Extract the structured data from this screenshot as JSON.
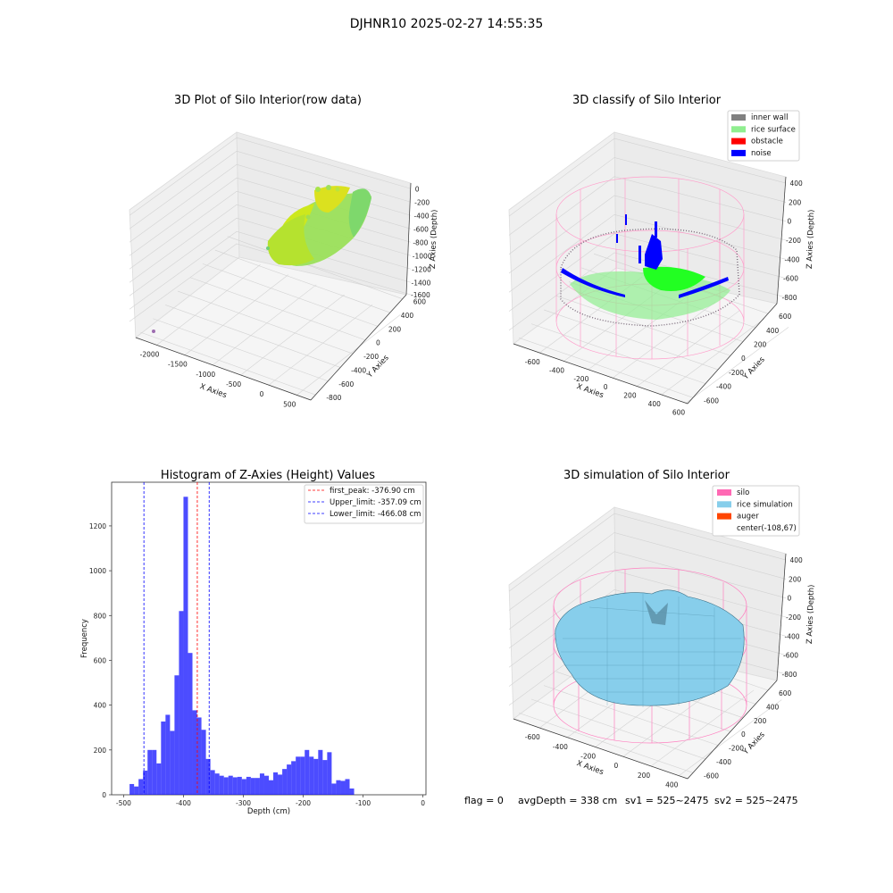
{
  "figure": {
    "suptitle": "DJHNR10 2025-02-27 14:55:35",
    "footer": {
      "flag": "flag = 0",
      "avgdepth": "avgDepth = 338 cm",
      "sv1": "sv1 = 525~2475",
      "sv2": "sv2 = 525~2475"
    }
  },
  "panels": {
    "p1": {
      "title": "3D Plot of Silo Interior(row data)",
      "xlabel": "X Axies",
      "ylabel": "Y Axies",
      "zlabel": "Z Axies (Depth)",
      "xticks": [
        "-2000",
        "-1500",
        "-1000",
        "-500",
        "0",
        "500"
      ],
      "yticks": [
        "-800",
        "-600",
        "-400",
        "-200",
        "0",
        "200",
        "400",
        "600"
      ],
      "zticks": [
        "0",
        "-200",
        "-400",
        "-600",
        "-800",
        "-1000",
        "-1200",
        "-1400",
        "-1600"
      ]
    },
    "p2": {
      "title": "3D classify of Silo Interior",
      "xlabel": "X Axies",
      "ylabel": "Y Axies",
      "zlabel": "Z Axies (Depth)",
      "xticks": [
        "-600",
        "-400",
        "-200",
        "0",
        "200",
        "400",
        "600"
      ],
      "yticks": [
        "-600",
        "-400",
        "-200",
        "0",
        "200",
        "400",
        "600"
      ],
      "zticks": [
        "400",
        "200",
        "0",
        "-200",
        "-400",
        "-600",
        "-800"
      ],
      "legend": [
        {
          "label": "inner wall",
          "color": "#808080"
        },
        {
          "label": "rice surface",
          "color": "#90ee90"
        },
        {
          "label": "obstacle",
          "color": "#ff0000"
        },
        {
          "label": "noise",
          "color": "#0000ff"
        }
      ]
    },
    "p4": {
      "title": "3D simulation of Silo Interior",
      "xlabel": "X Axies",
      "ylabel": "Y Axies",
      "zlabel": "Z Axies (Depth)",
      "xticks": [
        "-600",
        "-400",
        "-200",
        "0",
        "200",
        "400"
      ],
      "yticks": [
        "-600",
        "-400",
        "-200",
        "0",
        "200",
        "400",
        "600"
      ],
      "zticks": [
        "400",
        "200",
        "0",
        "-200",
        "-400",
        "-600",
        "-800"
      ],
      "legend": [
        {
          "label": "silo",
          "color": "#ff69b4"
        },
        {
          "label": "rice simulation",
          "color": "#87ceeb"
        },
        {
          "label": "auger",
          "color": "#ff4500"
        },
        {
          "label": "center(-108,67)",
          "color": ""
        }
      ]
    }
  },
  "chart_data": {
    "type": "bar",
    "title": "Histogram of Z-Axies (Height) Values",
    "xlabel": "Depth (cm)",
    "ylabel": "Frequency",
    "xlim": [
      -520,
      5
    ],
    "ylim": [
      0,
      1395
    ],
    "xticks": [
      -500,
      -400,
      -300,
      -200,
      -100,
      0
    ],
    "yticks": [
      0,
      200,
      400,
      600,
      800,
      1000,
      1200
    ],
    "bar_color": "#0000ff",
    "bin_width": 7.5,
    "bins_start": [
      -490,
      -482.5,
      -475,
      -467.5,
      -460,
      -452.5,
      -445,
      -437.5,
      -430,
      -422.5,
      -415,
      -407.5,
      -400,
      -392.5,
      -385,
      -377.5,
      -370,
      -362.5,
      -355,
      -347.5,
      -340,
      -332.5,
      -325,
      -317.5,
      -310,
      -302.5,
      -295,
      -287.5,
      -280,
      -272.5,
      -265,
      -257.5,
      -250,
      -242.5,
      -235,
      -227.5,
      -220,
      -212.5,
      -205,
      -197.5,
      -190,
      -182.5,
      -175,
      -167.5,
      -160,
      -152.5,
      -145,
      -137.5,
      -130,
      -122.5,
      -115,
      -107.5,
      -100,
      -92.5,
      -85,
      -77.5,
      -70,
      -62.5,
      -55,
      -47.5,
      -40,
      -32.5,
      -25,
      -17.5,
      -10
    ],
    "counts": [
      48,
      37,
      70,
      108,
      200,
      200,
      140,
      327,
      357,
      285,
      533,
      820,
      1330,
      633,
      377,
      345,
      290,
      160,
      110,
      95,
      85,
      78,
      85,
      78,
      80,
      70,
      80,
      75,
      75,
      95,
      85,
      65,
      100,
      90,
      115,
      135,
      150,
      170,
      170,
      200,
      170,
      160,
      200,
      155,
      190,
      50,
      65,
      62,
      70,
      28,
      0,
      0,
      0,
      0,
      0,
      0,
      0,
      0,
      0,
      0,
      0,
      0,
      0,
      0,
      0
    ],
    "lines": [
      {
        "label": "first_peak: -376.90 cm",
        "x": -376.9,
        "color": "#ff0000"
      },
      {
        "label": "Upper_limit: -357.09 cm",
        "x": -357.09,
        "color": "#0000ff"
      },
      {
        "label": "Lower_limit: -466.08 cm",
        "x": -466.08,
        "color": "#0000ff"
      }
    ]
  }
}
